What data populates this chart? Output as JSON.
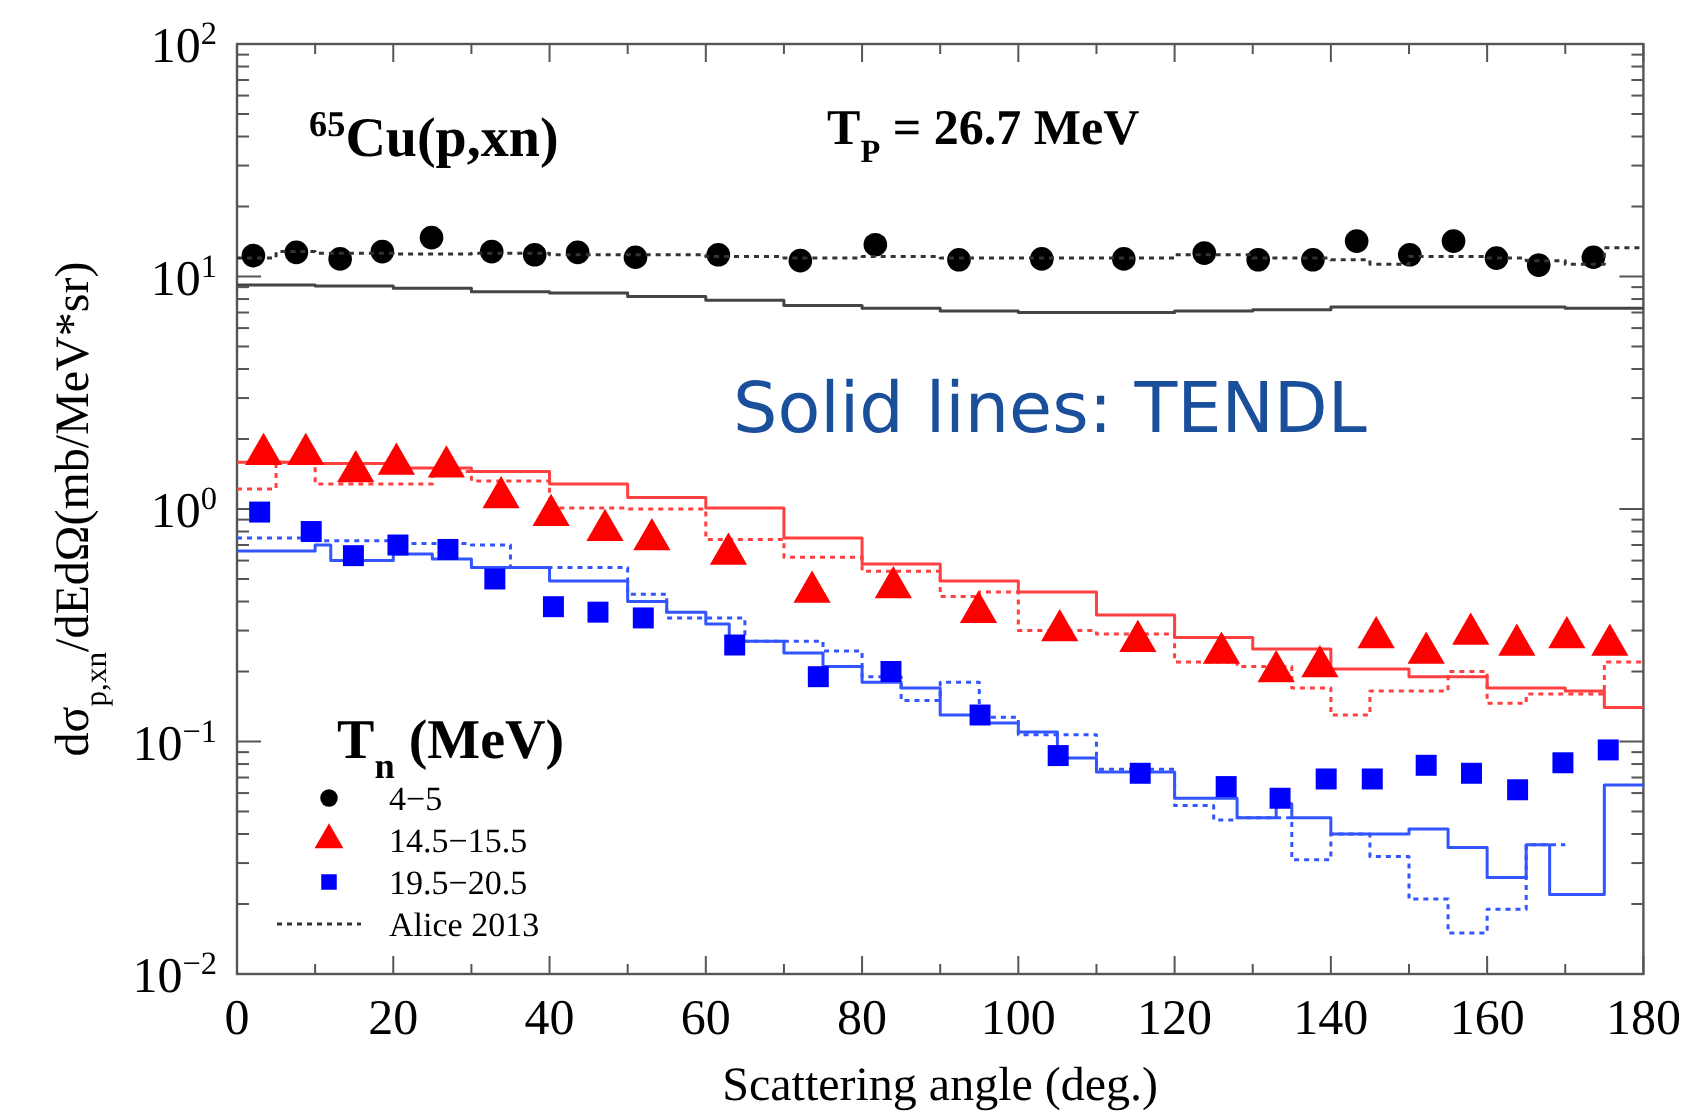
{
  "chart_data": {
    "type": "scatter",
    "title": "$^{65}$Cu(p,xn)",
    "subtitle": "T$_{P}$ = 26.7 MeV",
    "xlabel": "Scattering angle (deg.)",
    "ylabel": "dσ$_{p,xn}$/dEdΩ(mb/MeV*sr)",
    "legend_title": "T$_{n}$ (MeV)",
    "annotations": [
      "Solid lines: TENDL"
    ],
    "log": "y",
    "grid": false,
    "legend": "bottom left",
    "xlim": [
      0,
      180
    ],
    "xticks": [
      0,
      {
        "value": 10,
        "label": null
      },
      20,
      {
        "value": 30,
        "label": null
      },
      40,
      {
        "value": 50,
        "label": null
      },
      60,
      {
        "value": 70,
        "label": null
      },
      80,
      {
        "value": 90,
        "label": null
      },
      100,
      {
        "value": 110,
        "label": null
      },
      120,
      {
        "value": 130,
        "label": null
      },
      140,
      {
        "value": 150,
        "label": null
      },
      160,
      {
        "value": 170,
        "label": null
      },
      180
    ],
    "ylim": [
      0.01,
      100
    ],
    "yticks": [
      {
        "value": 0.01,
        "label": "10$^{−2}$"
      },
      {
        "value": 0.02,
        "label": null
      },
      {
        "value": 0.03,
        "label": null
      },
      {
        "value": 0.04,
        "label": null
      },
      {
        "value": 0.05,
        "label": null
      },
      {
        "value": 0.06,
        "label": null
      },
      {
        "value": 0.07,
        "label": null
      },
      {
        "value": 0.08,
        "label": null
      },
      {
        "value": 0.09,
        "label": null
      },
      {
        "value": 0.1,
        "label": "10$^{−1}$"
      },
      {
        "value": 0.2,
        "label": null
      },
      {
        "value": 0.3,
        "label": null
      },
      {
        "value": 0.4,
        "label": null
      },
      {
        "value": 0.5,
        "label": null
      },
      {
        "value": 0.6,
        "label": null
      },
      {
        "value": 0.7,
        "label": null
      },
      {
        "value": 0.8,
        "label": null
      },
      {
        "value": 0.9,
        "label": null
      },
      {
        "value": 1,
        "label": "10$^{0}$"
      },
      {
        "value": 2,
        "label": null
      },
      {
        "value": 3,
        "label": null
      },
      {
        "value": 4,
        "label": null
      },
      {
        "value": 5,
        "label": null
      },
      {
        "value": 6,
        "label": null
      },
      {
        "value": 7,
        "label": null
      },
      {
        "value": 8,
        "label": null
      },
      {
        "value": 9,
        "label": null
      },
      {
        "value": 10,
        "label": "10$^{1}$"
      },
      {
        "value": 20,
        "label": null
      },
      {
        "value": 30,
        "label": null
      },
      {
        "value": 40,
        "label": null
      },
      {
        "value": 50,
        "label": null
      },
      {
        "value": 60,
        "label": null
      },
      {
        "value": 70,
        "label": null
      },
      {
        "value": 80,
        "label": null
      },
      {
        "value": 90,
        "label": null
      },
      {
        "value": 100,
        "label": "10$^{2}$"
      }
    ],
    "series": [
      {
        "type": "step",
        "color": "#444444",
        "line_style": "solid",
        "x": [
          0,
          10,
          20,
          30,
          40,
          50,
          60,
          70,
          80,
          90,
          100,
          110,
          120,
          130,
          140,
          150,
          160,
          170,
          180
        ],
        "values": [
          9.2,
          9.1,
          8.9,
          8.6,
          8.5,
          8.2,
          7.9,
          7.5,
          7.3,
          7.1,
          7.0,
          7.0,
          7.1,
          7.2,
          7.4,
          7.4,
          7.4,
          7.3,
          7.3
        ]
      },
      {
        "type": "step",
        "color": "#ff4040",
        "line_style": "solid",
        "x": [
          0,
          10,
          20,
          30,
          40,
          50,
          60,
          70,
          80,
          90,
          100,
          110,
          120,
          130,
          140,
          150,
          160,
          170,
          175,
          180
        ],
        "values": [
          1.59,
          1.57,
          1.5,
          1.45,
          1.28,
          1.12,
          1.01,
          0.75,
          0.58,
          0.49,
          0.44,
          0.35,
          0.28,
          0.25,
          0.205,
          0.19,
          0.17,
          0.165,
          0.14,
          0.14
        ]
      },
      {
        "type": "step",
        "color": "#ff4040",
        "line_style": "dotted",
        "x": [
          0,
          5,
          10,
          25,
          30,
          40,
          50,
          60,
          70,
          80,
          90,
          95,
          100,
          110,
          120,
          128,
          135,
          140,
          145,
          155,
          160,
          165,
          170,
          175,
          180
        ],
        "values": [
          1.22,
          1.59,
          1.28,
          1.45,
          1.32,
          1.01,
          1.0,
          0.74,
          0.62,
          0.54,
          0.42,
          0.44,
          0.3,
          0.29,
          0.22,
          0.21,
          0.17,
          0.13,
          0.165,
          0.2,
          0.146,
          0.16,
          0.16,
          0.22,
          0.22
        ]
      },
      {
        "type": "step",
        "color": "#3355ff",
        "line_style": "solid",
        "x": [
          0,
          10,
          12,
          20,
          25,
          30,
          40,
          50,
          55,
          60,
          63,
          70,
          75,
          80,
          85,
          90,
          95,
          100,
          105,
          110,
          120,
          128,
          133,
          135,
          140,
          150,
          155,
          160,
          165,
          168,
          172,
          175,
          180
        ],
        "values": [
          0.66,
          0.7,
          0.6,
          0.64,
          0.61,
          0.56,
          0.49,
          0.4,
          0.36,
          0.32,
          0.27,
          0.24,
          0.21,
          0.18,
          0.17,
          0.13,
          0.12,
          0.11,
          0.085,
          0.074,
          0.057,
          0.047,
          0.054,
          0.047,
          0.04,
          0.042,
          0.035,
          0.026,
          0.036,
          0.022,
          0.022,
          0.065,
          0.065
        ]
      },
      {
        "type": "step",
        "color": "#3355ff",
        "line_style": "dotted",
        "x": [
          0,
          10,
          20,
          30,
          35,
          50,
          55,
          65,
          75,
          80,
          85,
          90,
          95,
          100,
          110,
          120,
          125,
          128,
          135,
          140,
          145,
          150,
          155,
          160,
          165,
          170
        ],
        "values": [
          0.75,
          0.73,
          0.71,
          0.7,
          0.56,
          0.43,
          0.34,
          0.27,
          0.245,
          0.19,
          0.15,
          0.18,
          0.127,
          0.107,
          0.076,
          0.053,
          0.046,
          0.047,
          0.031,
          0.04,
          0.032,
          0.021,
          0.015,
          0.019,
          0.036,
          0.036
        ]
      },
      {
        "name": "4−5",
        "color": "#000000",
        "marker": "circle",
        "x": [
          2.1,
          7.6,
          13.2,
          18.6,
          24.9,
          32.6,
          38.1,
          43.6,
          51.0,
          61.6,
          72.1,
          81.7,
          92.4,
          103.0,
          113.5,
          123.8,
          130.7,
          137.7,
          143.3,
          150.1,
          155.7,
          161.2,
          166.6,
          173.6
        ],
        "values": [
          12.3,
          12.7,
          11.9,
          12.8,
          14.7,
          12.8,
          12.4,
          12.7,
          12.1,
          12.4,
          11.7,
          13.7,
          11.8,
          11.9,
          11.9,
          12.6,
          11.8,
          11.8,
          14.2,
          12.4,
          14.2,
          12.0,
          11.2,
          12.1
        ]
      },
      {
        "name": "14.5−15.5",
        "color": "#ff0000",
        "marker": "triangle",
        "x": [
          3.4,
          8.8,
          15.2,
          20.4,
          26.8,
          33.8,
          40.2,
          47.1,
          53.1,
          62.9,
          73.6,
          84.0,
          94.9,
          105.3,
          115.3,
          126.0,
          133.0,
          138.6,
          145.8,
          152.2,
          157.9,
          163.8,
          170.2,
          175.7
        ],
        "values": [
          1.72,
          1.72,
          1.45,
          1.56,
          1.52,
          1.12,
          0.94,
          0.81,
          0.74,
          0.64,
          0.44,
          0.46,
          0.36,
          0.3,
          0.27,
          0.24,
          0.2,
          0.21,
          0.28,
          0.24,
          0.29,
          0.26,
          0.28,
          0.26
        ]
      },
      {
        "name": "19.5−20.5",
        "color": "#0000ff",
        "marker": "square",
        "x": [
          2.9,
          9.5,
          14.9,
          20.6,
          27.0,
          33.0,
          40.5,
          46.2,
          52.0,
          63.7,
          74.4,
          83.7,
          95.1,
          105.1,
          115.6,
          126.6,
          133.5,
          139.4,
          145.3,
          152.2,
          158.0,
          163.9,
          169.7,
          175.5
        ],
        "values": [
          0.97,
          0.8,
          0.63,
          0.7,
          0.67,
          0.5,
          0.38,
          0.36,
          0.34,
          0.26,
          0.19,
          0.2,
          0.13,
          0.087,
          0.073,
          0.064,
          0.057,
          0.069,
          0.069,
          0.079,
          0.073,
          0.062,
          0.081,
          0.092
        ]
      },
      {
        "type": "step",
        "name": "Alice 2013",
        "color": "#333333",
        "line_style": "dotted",
        "x": [
          0,
          5,
          10,
          20,
          30,
          40,
          50,
          60,
          70,
          80,
          90,
          100,
          110,
          120,
          130,
          140,
          145,
          150,
          160,
          165,
          170,
          175,
          180
        ],
        "values": [
          12.0,
          12.8,
          12.6,
          12.5,
          12.6,
          12.4,
          12.4,
          12.2,
          12.0,
          12.2,
          12.0,
          12.0,
          12.0,
          12.4,
          12.0,
          11.8,
          11.3,
          12.2,
          12.0,
          11.7,
          11.3,
          13.3,
          13.3
        ]
      }
    ]
  }
}
